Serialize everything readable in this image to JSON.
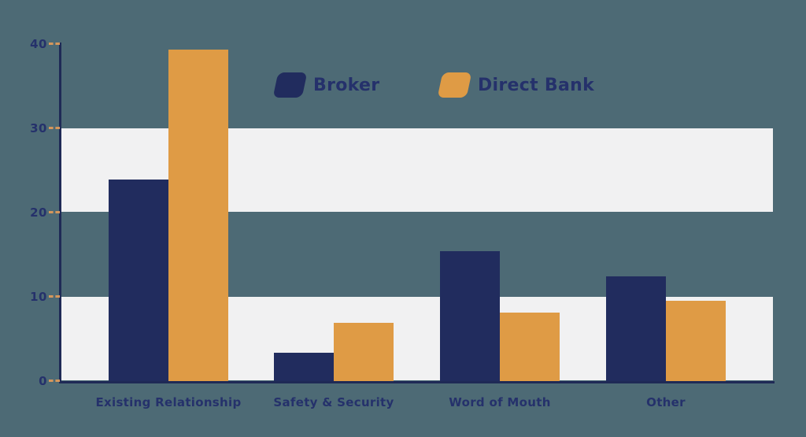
{
  "legend": [
    {
      "label": "Broker"
    },
    {
      "label": "Direct Bank"
    }
  ],
  "colors": {
    "background": "#4d6a75",
    "band": "#f1f1f2",
    "series_broker": "#212c5e",
    "series_direct_bank": "#df9b45",
    "axis_line": "#1f2a56",
    "tick_mark": "#d5975c",
    "label_text": "#25316b"
  },
  "chart_data": {
    "type": "bar",
    "title": "",
    "categories": [
      "Existing Relationship",
      "Safety & Security",
      "Word of Mouth",
      "Other"
    ],
    "series": [
      {
        "name": "Broker",
        "color": "#212c5e",
        "values": [
          23.9,
          3.4,
          15.4,
          12.4
        ]
      },
      {
        "name": "Direct Bank",
        "color": "#df9b45",
        "values": [
          39.3,
          6.9,
          8.1,
          9.5
        ]
      }
    ],
    "xlabel": "",
    "ylabel": "",
    "ylim": [
      0,
      40
    ],
    "yticks": [
      0,
      10,
      20,
      30,
      40
    ],
    "background_bands": [
      [
        0,
        10
      ],
      [
        20,
        30
      ]
    ],
    "grid": false,
    "legend_position": "top-center"
  }
}
